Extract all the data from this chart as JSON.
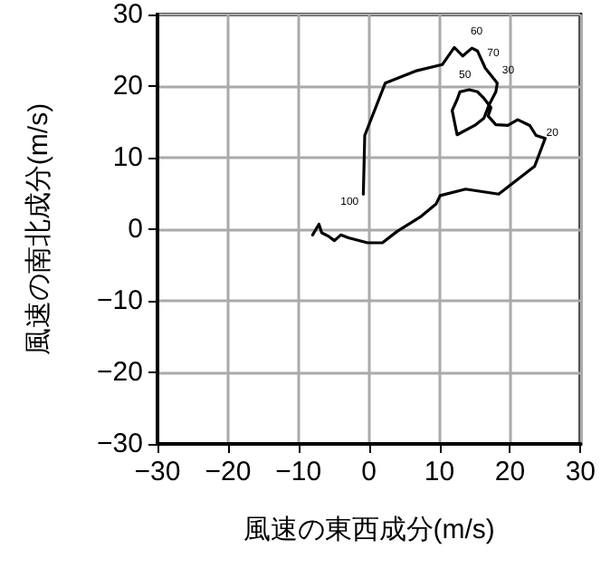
{
  "chart_data": {
    "type": "line",
    "xlabel": "風速の東西成分(m/s)",
    "ylabel": "風速の南北成分(m/s)",
    "series": [
      {
        "color": "#000000",
        "x": [
          -8.0,
          -7.1,
          -6.7,
          -5.7,
          -4.9,
          -4.0,
          -2.9,
          -0.2,
          1.9,
          4.0,
          7.4,
          9.5,
          10.1,
          13.7,
          18.4,
          23.5,
          25.0,
          23.7,
          22.8,
          21.1,
          19.7,
          18.0,
          16.9,
          17.3,
          16.3,
          15.4,
          14.2,
          12.9,
          12.5,
          11.8,
          12.5,
          15.0,
          16.3,
          17.0,
          18.0,
          18.2,
          16.5,
          15.4,
          14.6,
          13.3,
          12.1,
          10.4,
          6.6,
          2.3,
          -0.6,
          -0.8
        ],
        "values": [
          -0.8,
          0.7,
          -0.5,
          -1.0,
          -1.6,
          -0.8,
          -1.2,
          -1.9,
          -1.9,
          -0.3,
          1.8,
          3.5,
          4.7,
          5.6,
          4.9,
          8.8,
          12.7,
          13.1,
          14.5,
          15.3,
          14.5,
          14.6,
          15.8,
          17.0,
          18.3,
          19.2,
          19.5,
          19.2,
          18.1,
          16.6,
          13.2,
          14.5,
          15.5,
          17.3,
          19.2,
          20.4,
          22.5,
          24.9,
          25.3,
          24.2,
          25.4,
          23.0,
          22.1,
          20.4,
          13.1,
          4.9
        ]
      }
    ],
    "xlim": [
      -30,
      30
    ],
    "xticks": [
      -30,
      -20,
      -10,
      0,
      10,
      20,
      30
    ],
    "ylim": [
      -30,
      30
    ],
    "yticks": [
      -30,
      -20,
      -10,
      0,
      10,
      20,
      30
    ],
    "grid": true,
    "marker": "none",
    "line_style": "solid",
    "annotations": [
      {
        "text": "100",
        "x": -0.8,
        "y": 4.9
      },
      {
        "text": "50",
        "x": 12.9,
        "y": 19.2
      },
      {
        "text": "70",
        "x": 16.5,
        "y": 22.5
      },
      {
        "text": "30",
        "x": 18.2,
        "y": 20.4
      },
      {
        "text": "20",
        "x": 23.7,
        "y": 13.1
      },
      {
        "text": "60",
        "x": 14.6,
        "y": 25.3
      }
    ]
  }
}
